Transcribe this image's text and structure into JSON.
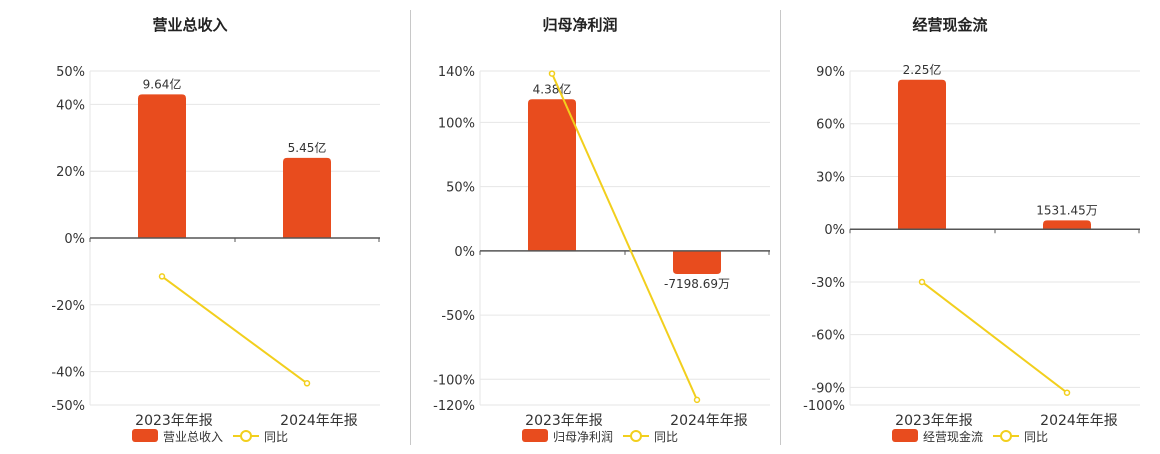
{
  "chart_data": [
    {
      "type": "bar",
      "title": "营业总收入",
      "categories": [
        "2023年年报",
        "2024年年报"
      ],
      "series": [
        {
          "name": "营业总收入",
          "type": "bar",
          "values": [
            43,
            24
          ],
          "labels": [
            "9.64亿",
            "5.45亿"
          ]
        },
        {
          "name": "同比",
          "type": "line",
          "values": [
            -11.5,
            -43.5
          ]
        }
      ],
      "ylim": [
        -50,
        50
      ],
      "yticks": [
        50,
        40,
        20,
        0,
        -20,
        -40,
        -50
      ],
      "ytick_labels": [
        "50%",
        "40%",
        "20%",
        "0%",
        "-20%",
        "-40%",
        "-50%"
      ]
    },
    {
      "type": "bar",
      "title": "归母净利润",
      "categories": [
        "2023年年报",
        "2024年年报"
      ],
      "series": [
        {
          "name": "归母净利润",
          "type": "bar",
          "values": [
            118,
            -18
          ],
          "labels": [
            "4.38亿",
            "-7198.69万"
          ]
        },
        {
          "name": "同比",
          "type": "line",
          "values": [
            138,
            -116
          ]
        }
      ],
      "ylim": [
        -120,
        140
      ],
      "yticks": [
        140,
        100,
        50,
        0,
        -50,
        -100,
        -120
      ],
      "ytick_labels": [
        "140%",
        "100%",
        "50%",
        "0%",
        "-50%",
        "-100%",
        "-120%"
      ]
    },
    {
      "type": "bar",
      "title": "经营现金流",
      "categories": [
        "2023年年报",
        "2024年年报"
      ],
      "series": [
        {
          "name": "经营现金流",
          "type": "bar",
          "values": [
            85,
            5
          ],
          "labels": [
            "2.25亿",
            "1531.45万"
          ]
        },
        {
          "name": "同比",
          "type": "line",
          "values": [
            -30,
            -93
          ]
        }
      ],
      "ylim": [
        -100,
        90
      ],
      "yticks": [
        90,
        60,
        30,
        0,
        -30,
        -60,
        -90,
        -100
      ],
      "ytick_labels": [
        "90%",
        "60%",
        "30%",
        "0%",
        "-30%",
        "-60%",
        "-90%",
        "-100%"
      ]
    }
  ],
  "colors": {
    "bar": "#e84c1e",
    "line": "#f2cf1d",
    "grid": "#e6e6e6",
    "axis": "#555555",
    "text": "#333333",
    "divider": "#c8c8c8"
  },
  "icons": {
    "bar_legend": "filled-rounded-rect",
    "line_legend": "line-with-circle-marker"
  }
}
